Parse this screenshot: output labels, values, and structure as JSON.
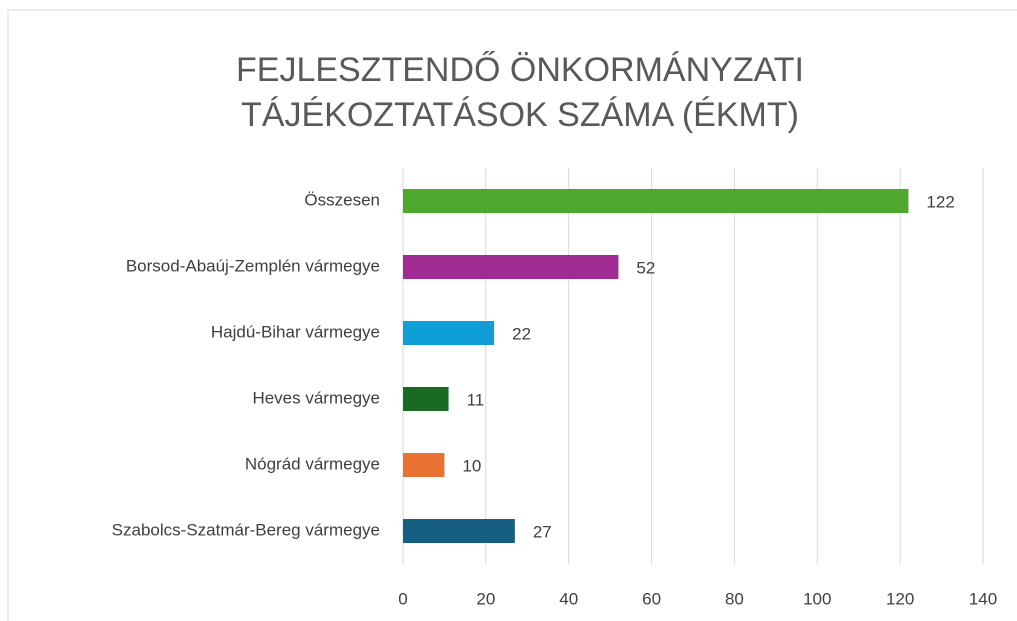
{
  "chart_data": {
    "type": "hbar",
    "title": [
      "FEJLESZTENDŐ ÖNKORMÁNYZATI",
      "TÁJÉKOZTATÁSOK SZÁMA  (ÉKMT)"
    ],
    "categories": [
      "Összesen",
      "Borsod-Abaúj-Zemplén vármegye",
      "Hajdú-Bihar vármegye",
      "Heves vármegye",
      "Nógrád vármegye",
      "Szabolcs-Szatmár-Bereg vármegye"
    ],
    "values": [
      122,
      52,
      22,
      11,
      10,
      27
    ],
    "colors": [
      "#4ea72e",
      "#a02b93",
      "#0f9ed5",
      "#196b24",
      "#e97132",
      "#156082"
    ],
    "xlim": [
      0,
      140
    ],
    "xticks": [
      0,
      20,
      40,
      60,
      80,
      100,
      120,
      140
    ],
    "grid": true
  }
}
